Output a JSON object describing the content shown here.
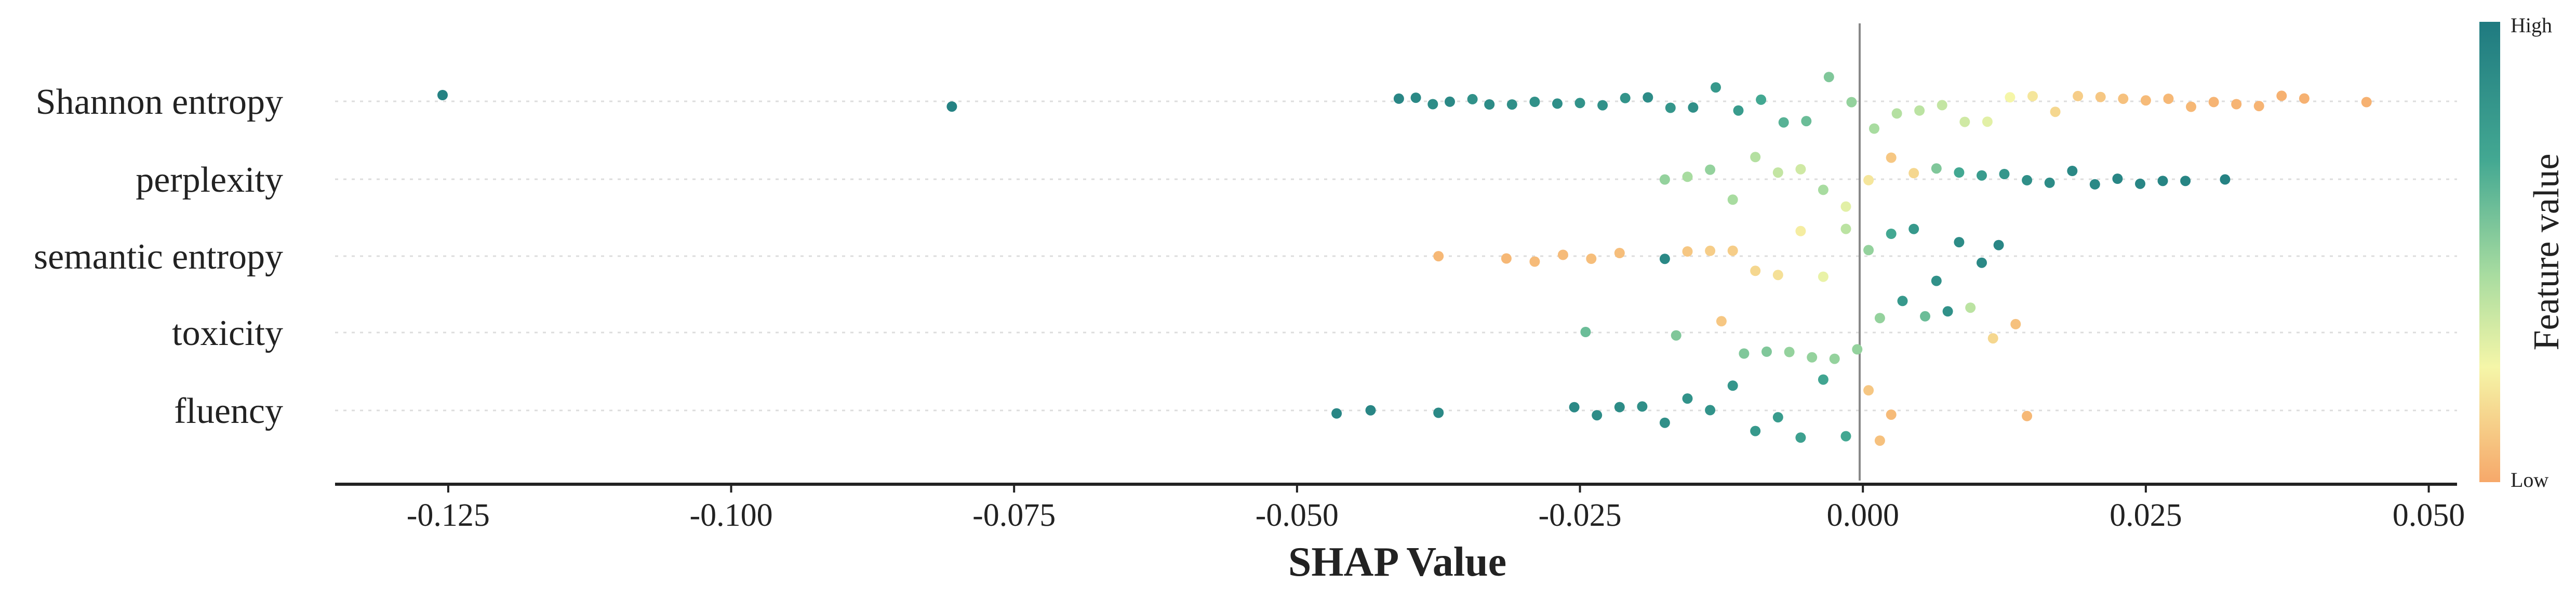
{
  "chart_data": {
    "type": "scatter",
    "subtype": "shap-beeswarm",
    "title": "",
    "xlabel": "SHAP Value",
    "ylabel": "",
    "xlim": [
      -0.135,
      0.0525
    ],
    "xticks": [
      -0.125,
      -0.1,
      -0.075,
      -0.05,
      -0.025,
      0.0,
      0.025,
      0.05
    ],
    "xtick_labels": [
      "-0.125",
      "-0.100",
      "-0.075",
      "-0.050",
      "-0.025",
      "0.000",
      "0.025",
      "0.050"
    ],
    "features": [
      "Shannon entropy",
      "perplexity",
      "semantic entropy",
      "toxicity",
      "fluency"
    ],
    "colorbar": {
      "label": "Feature value",
      "high_label": "High",
      "low_label": "Low",
      "high_color": "#1f7a80",
      "mid_color": "#f5f6a8",
      "low_color": "#f6a86a"
    },
    "series": [
      {
        "name": "Shannon entropy",
        "points": [
          [
            -0.1255,
            0.95
          ],
          [
            -0.0805,
            0.95
          ],
          [
            -0.041,
            0.92
          ],
          [
            -0.0395,
            0.9
          ],
          [
            -0.038,
            0.88
          ],
          [
            -0.0365,
            0.9
          ],
          [
            -0.0345,
            0.85
          ],
          [
            -0.033,
            0.88
          ],
          [
            -0.031,
            0.86
          ],
          [
            -0.029,
            0.85
          ],
          [
            -0.027,
            0.87
          ],
          [
            -0.025,
            0.84
          ],
          [
            -0.023,
            0.85
          ],
          [
            -0.021,
            0.83
          ],
          [
            -0.019,
            0.88
          ],
          [
            -0.017,
            0.82
          ],
          [
            -0.015,
            0.86
          ],
          [
            -0.013,
            0.8
          ],
          [
            -0.011,
            0.78
          ],
          [
            -0.009,
            0.7
          ],
          [
            -0.007,
            0.65
          ],
          [
            -0.005,
            0.6
          ],
          [
            -0.003,
            0.55
          ],
          [
            -0.001,
            0.5
          ],
          [
            0.001,
            0.45
          ],
          [
            0.003,
            0.42
          ],
          [
            0.005,
            0.4
          ],
          [
            0.007,
            0.38
          ],
          [
            0.009,
            0.35
          ],
          [
            0.011,
            0.3
          ],
          [
            0.013,
            0.25
          ],
          [
            0.015,
            0.2
          ],
          [
            0.017,
            0.15
          ],
          [
            0.019,
            0.12
          ],
          [
            0.021,
            0.1
          ],
          [
            0.023,
            0.08
          ],
          [
            0.025,
            0.06
          ],
          [
            0.027,
            0.05
          ],
          [
            0.029,
            0.05
          ],
          [
            0.031,
            0.04
          ],
          [
            0.033,
            0.04
          ],
          [
            0.035,
            0.04
          ],
          [
            0.037,
            0.03
          ],
          [
            0.039,
            0.03
          ],
          [
            0.0445,
            0.03
          ]
        ]
      },
      {
        "name": "perplexity",
        "points": [
          [
            -0.0175,
            0.5
          ],
          [
            -0.0155,
            0.45
          ],
          [
            -0.0135,
            0.5
          ],
          [
            -0.0115,
            0.45
          ],
          [
            -0.0095,
            0.42
          ],
          [
            -0.0075,
            0.38
          ],
          [
            -0.0055,
            0.35
          ],
          [
            -0.0035,
            0.45
          ],
          [
            -0.0015,
            0.3
          ],
          [
            0.0005,
            0.2
          ],
          [
            0.0025,
            0.1
          ],
          [
            0.0045,
            0.15
          ],
          [
            0.0065,
            0.55
          ],
          [
            0.0085,
            0.7
          ],
          [
            0.0105,
            0.78
          ],
          [
            0.0125,
            0.82
          ],
          [
            0.0145,
            0.86
          ],
          [
            0.0165,
            0.88
          ],
          [
            0.0185,
            0.9
          ],
          [
            0.0205,
            0.9
          ],
          [
            0.0225,
            0.92
          ],
          [
            0.0245,
            0.92
          ],
          [
            0.0265,
            0.93
          ],
          [
            0.0285,
            0.93
          ],
          [
            0.032,
            0.95
          ]
        ]
      },
      {
        "name": "semantic entropy",
        "points": [
          [
            -0.0375,
            0.05
          ],
          [
            -0.0315,
            0.05
          ],
          [
            -0.029,
            0.06
          ],
          [
            -0.0265,
            0.06
          ],
          [
            -0.024,
            0.07
          ],
          [
            -0.0215,
            0.07
          ],
          [
            -0.0175,
            0.9
          ],
          [
            -0.0155,
            0.1
          ],
          [
            -0.0135,
            0.12
          ],
          [
            -0.0115,
            0.12
          ],
          [
            -0.0095,
            0.15
          ],
          [
            -0.0075,
            0.18
          ],
          [
            -0.0055,
            0.22
          ],
          [
            -0.0035,
            0.28
          ],
          [
            -0.0015,
            0.4
          ],
          [
            0.0005,
            0.5
          ],
          [
            0.0025,
            0.7
          ],
          [
            0.0045,
            0.8
          ],
          [
            0.0065,
            0.85
          ],
          [
            0.0085,
            0.88
          ],
          [
            0.0105,
            0.9
          ],
          [
            0.012,
            0.92
          ]
        ]
      },
      {
        "name": "toxicity",
        "points": [
          [
            -0.0245,
            0.6
          ],
          [
            -0.0165,
            0.55
          ],
          [
            -0.0125,
            0.1
          ],
          [
            -0.0105,
            0.55
          ],
          [
            -0.0085,
            0.55
          ],
          [
            -0.0065,
            0.5
          ],
          [
            -0.0045,
            0.5
          ],
          [
            -0.0025,
            0.5
          ],
          [
            -0.0005,
            0.5
          ],
          [
            0.0015,
            0.5
          ],
          [
            0.0035,
            0.8
          ],
          [
            0.0055,
            0.6
          ],
          [
            0.0075,
            0.85
          ],
          [
            0.0095,
            0.4
          ],
          [
            0.0115,
            0.15
          ],
          [
            0.0135,
            0.08
          ]
        ]
      },
      {
        "name": "fluency",
        "points": [
          [
            -0.0465,
            0.92
          ],
          [
            -0.0435,
            0.92
          ],
          [
            -0.0375,
            0.9
          ],
          [
            -0.0255,
            0.9
          ],
          [
            -0.0235,
            0.88
          ],
          [
            -0.0215,
            0.88
          ],
          [
            -0.0195,
            0.86
          ],
          [
            -0.0175,
            0.86
          ],
          [
            -0.0155,
            0.84
          ],
          [
            -0.0135,
            0.84
          ],
          [
            -0.0115,
            0.82
          ],
          [
            -0.0095,
            0.8
          ],
          [
            -0.0075,
            0.78
          ],
          [
            -0.0055,
            0.75
          ],
          [
            -0.0035,
            0.72
          ],
          [
            -0.0015,
            0.7
          ],
          [
            0.0005,
            0.1
          ],
          [
            0.0015,
            0.08
          ],
          [
            0.0025,
            0.06
          ],
          [
            0.0145,
            0.05
          ]
        ]
      }
    ]
  }
}
